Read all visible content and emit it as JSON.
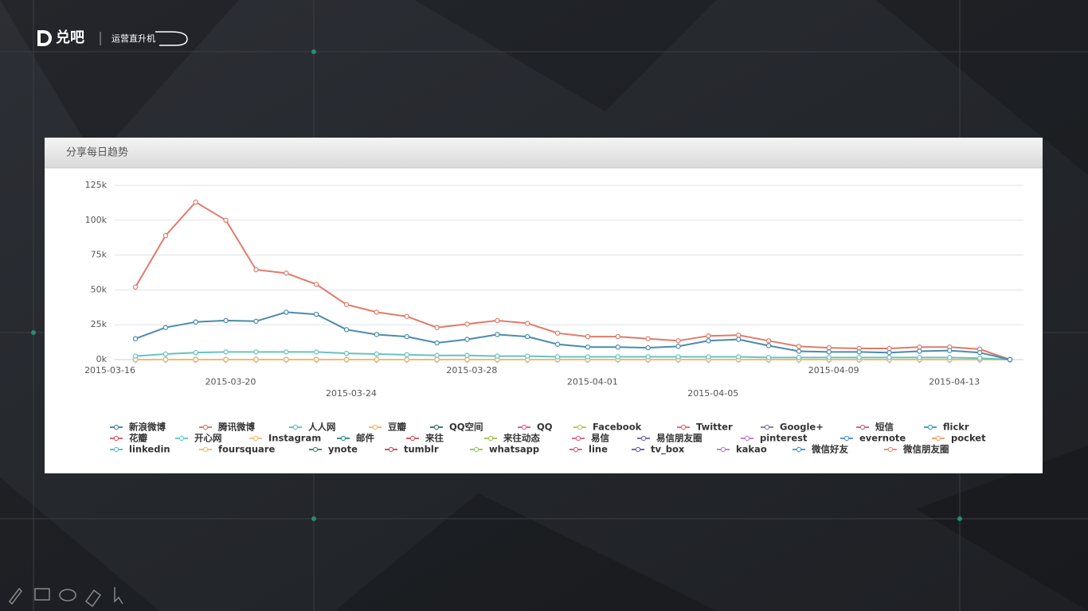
{
  "header": {
    "brand": "兑吧",
    "sub": "运营直升机"
  },
  "chart_data": {
    "type": "line",
    "title": "分享每日趋势",
    "x": [
      "2015-03-16",
      "2015-03-17",
      "2015-03-18",
      "2015-03-19",
      "2015-03-20",
      "2015-03-21",
      "2015-03-22",
      "2015-03-23",
      "2015-03-24",
      "2015-03-25",
      "2015-03-26",
      "2015-03-27",
      "2015-03-28",
      "2015-03-29",
      "2015-03-30",
      "2015-03-31",
      "2015-04-01",
      "2015-04-02",
      "2015-04-03",
      "2015-04-04",
      "2015-04-05",
      "2015-04-06",
      "2015-04-07",
      "2015-04-08",
      "2015-04-09",
      "2015-04-10",
      "2015-04-11",
      "2015-04-12",
      "2015-04-13",
      "2015-04-14"
    ],
    "xticks": [
      "2015-03-16",
      "2015-03-20",
      "2015-03-24",
      "2015-03-28",
      "2015-04-01",
      "2015-04-05",
      "2015-04-09",
      "2015-04-13"
    ],
    "ylim": [
      0,
      125000
    ],
    "yticks": [
      {
        "value": 0,
        "label": "0k"
      },
      {
        "value": 25000,
        "label": "25k"
      },
      {
        "value": 50000,
        "label": "50k"
      },
      {
        "value": 75000,
        "label": "75k"
      },
      {
        "value": 100000,
        "label": "100k"
      },
      {
        "value": 125000,
        "label": "125k"
      }
    ],
    "grid": true,
    "legend": "bottom",
    "series": [
      {
        "name": "新浪微博",
        "color": "#4a8bad",
        "values": [
          15000,
          23000,
          27000,
          28000,
          27500,
          34000,
          32500,
          21500,
          18000,
          16500,
          12000,
          14500,
          18000,
          16500,
          11000,
          9000,
          9000,
          8500,
          9500,
          13500,
          14500,
          10000,
          6000,
          5500,
          5500,
          5000,
          6000,
          6500,
          5000,
          0
        ]
      },
      {
        "name": "腾讯微博",
        "color": "#e07b6a",
        "values": [
          52000,
          89000,
          113000,
          100000,
          64500,
          62000,
          54000,
          39500,
          34000,
          31000,
          23000,
          25500,
          28000,
          26000,
          19000,
          16500,
          16500,
          15000,
          13500,
          17000,
          17500,
          13500,
          9500,
          8500,
          8000,
          8000,
          9000,
          9000,
          7500,
          0
        ]
      },
      {
        "name": "人人网",
        "color": "#66c2c2",
        "values": [
          2500,
          4000,
          5000,
          5500,
          5500,
          5500,
          5500,
          4500,
          4000,
          3500,
          3000,
          3000,
          2500,
          2500,
          2000,
          2000,
          2000,
          2000,
          2000,
          2000,
          2000,
          1500,
          1500,
          1500,
          1500,
          1500,
          1500,
          1500,
          1000,
          0
        ]
      },
      {
        "name": "豆瓣",
        "color": "#f7b967",
        "values": [
          0,
          0,
          0,
          0,
          0,
          0,
          0,
          0,
          0,
          0,
          0,
          0,
          0,
          0,
          0,
          0,
          0,
          0,
          0,
          0,
          0,
          0,
          0,
          0,
          0,
          0,
          0,
          0,
          0,
          0
        ]
      },
      {
        "name": "QQ空间",
        "color": "#3c7a79",
        "values": [
          0,
          0,
          0,
          0,
          0,
          0,
          0,
          0,
          0,
          0,
          0,
          0,
          0,
          0,
          0,
          0,
          0,
          0,
          0,
          0,
          0,
          0,
          0,
          0,
          0,
          0,
          0,
          0,
          0,
          0
        ]
      },
      {
        "name": "QQ",
        "color": "#d6678d",
        "values": [
          0,
          0,
          0,
          0,
          0,
          0,
          0,
          0,
          0,
          0,
          0,
          0,
          0,
          0,
          0,
          0,
          0,
          0,
          0,
          0,
          0,
          0,
          0,
          0,
          0,
          0,
          0,
          0,
          0,
          0
        ]
      },
      {
        "name": "Facebook",
        "color": "#b5c96b",
        "values": [
          0,
          0,
          0,
          0,
          0,
          0,
          0,
          0,
          0,
          0,
          0,
          0,
          0,
          0,
          0,
          0,
          0,
          0,
          0,
          0,
          0,
          0,
          0,
          0,
          0,
          0,
          0,
          0,
          0,
          0
        ]
      },
      {
        "name": "Twitter",
        "color": "#e86e6e",
        "values": [
          0,
          0,
          0,
          0,
          0,
          0,
          0,
          0,
          0,
          0,
          0,
          0,
          0,
          0,
          0,
          0,
          0,
          0,
          0,
          0,
          0,
          0,
          0,
          0,
          0,
          0,
          0,
          0,
          0,
          0
        ]
      },
      {
        "name": "Google+",
        "color": "#8085a8",
        "values": [
          0,
          0,
          0,
          0,
          0,
          0,
          0,
          0,
          0,
          0,
          0,
          0,
          0,
          0,
          0,
          0,
          0,
          0,
          0,
          0,
          0,
          0,
          0,
          0,
          0,
          0,
          0,
          0,
          0,
          0
        ]
      },
      {
        "name": "短信",
        "color": "#c96f8b",
        "values": [
          0,
          0,
          0,
          0,
          0,
          0,
          0,
          0,
          0,
          0,
          0,
          0,
          0,
          0,
          0,
          0,
          0,
          0,
          0,
          0,
          0,
          0,
          0,
          0,
          0,
          0,
          0,
          0,
          0,
          0
        ]
      },
      {
        "name": "flickr",
        "color": "#4aa0c9",
        "values": [
          0,
          0,
          0,
          0,
          0,
          0,
          0,
          0,
          0,
          0,
          0,
          0,
          0,
          0,
          0,
          0,
          0,
          0,
          0,
          0,
          0,
          0,
          0,
          0,
          0,
          0,
          0,
          0,
          0,
          0
        ]
      },
      {
        "name": "花瓣",
        "color": "#e0626a",
        "values": [
          0,
          0,
          0,
          0,
          0,
          0,
          0,
          0,
          0,
          0,
          0,
          0,
          0,
          0,
          0,
          0,
          0,
          0,
          0,
          0,
          0,
          0,
          0,
          0,
          0,
          0,
          0,
          0,
          0,
          0
        ]
      },
      {
        "name": "开心网",
        "color": "#70cccc",
        "values": [
          0,
          0,
          0,
          0,
          0,
          0,
          0,
          0,
          0,
          0,
          0,
          0,
          0,
          0,
          0,
          0,
          0,
          0,
          0,
          0,
          0,
          0,
          0,
          0,
          0,
          0,
          0,
          0,
          0,
          0
        ]
      },
      {
        "name": "Instagram",
        "color": "#f2c27c",
        "values": [
          0,
          0,
          0,
          0,
          0,
          0,
          0,
          0,
          0,
          0,
          0,
          0,
          0,
          0,
          0,
          0,
          0,
          0,
          0,
          0,
          0,
          0,
          0,
          0,
          0,
          0,
          0,
          0,
          0,
          0
        ]
      },
      {
        "name": "邮件",
        "color": "#3f8f8a",
        "values": [
          0,
          0,
          0,
          0,
          0,
          0,
          0,
          0,
          0,
          0,
          0,
          0,
          0,
          0,
          0,
          0,
          0,
          0,
          0,
          0,
          0,
          0,
          0,
          0,
          0,
          0,
          0,
          0,
          0,
          0
        ]
      },
      {
        "name": "来往",
        "color": "#d35f6a",
        "values": [
          0,
          0,
          0,
          0,
          0,
          0,
          0,
          0,
          0,
          0,
          0,
          0,
          0,
          0,
          0,
          0,
          0,
          0,
          0,
          0,
          0,
          0,
          0,
          0,
          0,
          0,
          0,
          0,
          0,
          0
        ]
      },
      {
        "name": "来往动态",
        "color": "#a6c25f",
        "values": [
          0,
          0,
          0,
          0,
          0,
          0,
          0,
          0,
          0,
          0,
          0,
          0,
          0,
          0,
          0,
          0,
          0,
          0,
          0,
          0,
          0,
          0,
          0,
          0,
          0,
          0,
          0,
          0,
          0,
          0
        ]
      },
      {
        "name": "易信",
        "color": "#d86e8a",
        "values": [
          0,
          0,
          0,
          0,
          0,
          0,
          0,
          0,
          0,
          0,
          0,
          0,
          0,
          0,
          0,
          0,
          0,
          0,
          0,
          0,
          0,
          0,
          0,
          0,
          0,
          0,
          0,
          0,
          0,
          0
        ]
      },
      {
        "name": "易信朋友圈",
        "color": "#7a6fae",
        "values": [
          0,
          0,
          0,
          0,
          0,
          0,
          0,
          0,
          0,
          0,
          0,
          0,
          0,
          0,
          0,
          0,
          0,
          0,
          0,
          0,
          0,
          0,
          0,
          0,
          0,
          0,
          0,
          0,
          0,
          0
        ]
      },
      {
        "name": "pinterest",
        "color": "#c383d6",
        "values": [
          0,
          0,
          0,
          0,
          0,
          0,
          0,
          0,
          0,
          0,
          0,
          0,
          0,
          0,
          0,
          0,
          0,
          0,
          0,
          0,
          0,
          0,
          0,
          0,
          0,
          0,
          0,
          0,
          0,
          0
        ]
      },
      {
        "name": "evernote",
        "color": "#5b9bc4",
        "values": [
          0,
          0,
          0,
          0,
          0,
          0,
          0,
          0,
          0,
          0,
          0,
          0,
          0,
          0,
          0,
          0,
          0,
          0,
          0,
          0,
          0,
          0,
          0,
          0,
          0,
          0,
          0,
          0,
          0,
          0
        ]
      },
      {
        "name": "pocket",
        "color": "#f0a574",
        "values": [
          0,
          0,
          0,
          0,
          0,
          0,
          0,
          0,
          0,
          0,
          0,
          0,
          0,
          0,
          0,
          0,
          0,
          0,
          0,
          0,
          0,
          0,
          0,
          0,
          0,
          0,
          0,
          0,
          0,
          0
        ]
      },
      {
        "name": "linkedin",
        "color": "#60c4c4",
        "values": [
          0,
          0,
          0,
          0,
          0,
          0,
          0,
          0,
          0,
          0,
          0,
          0,
          0,
          0,
          0,
          0,
          0,
          0,
          0,
          0,
          0,
          0,
          0,
          0,
          0,
          0,
          0,
          0,
          0,
          0
        ]
      },
      {
        "name": "foursquare",
        "color": "#f3c06b",
        "values": [
          0,
          0,
          0,
          0,
          0,
          0,
          0,
          0,
          0,
          0,
          0,
          0,
          0,
          0,
          0,
          0,
          0,
          0,
          0,
          0,
          0,
          0,
          0,
          0,
          0,
          0,
          0,
          0,
          0,
          0
        ]
      },
      {
        "name": "ynote",
        "color": "#4c8a80",
        "values": [
          0,
          0,
          0,
          0,
          0,
          0,
          0,
          0,
          0,
          0,
          0,
          0,
          0,
          0,
          0,
          0,
          0,
          0,
          0,
          0,
          0,
          0,
          0,
          0,
          0,
          0,
          0,
          0,
          0,
          0
        ]
      },
      {
        "name": "tumblr",
        "color": "#c9546a",
        "values": [
          0,
          0,
          0,
          0,
          0,
          0,
          0,
          0,
          0,
          0,
          0,
          0,
          0,
          0,
          0,
          0,
          0,
          0,
          0,
          0,
          0,
          0,
          0,
          0,
          0,
          0,
          0,
          0,
          0,
          0
        ]
      },
      {
        "name": "whatsapp",
        "color": "#a3c266",
        "values": [
          0,
          0,
          0,
          0,
          0,
          0,
          0,
          0,
          0,
          0,
          0,
          0,
          0,
          0,
          0,
          0,
          0,
          0,
          0,
          0,
          0,
          0,
          0,
          0,
          0,
          0,
          0,
          0,
          0,
          0
        ]
      },
      {
        "name": "line",
        "color": "#d86c8c",
        "values": [
          0,
          0,
          0,
          0,
          0,
          0,
          0,
          0,
          0,
          0,
          0,
          0,
          0,
          0,
          0,
          0,
          0,
          0,
          0,
          0,
          0,
          0,
          0,
          0,
          0,
          0,
          0,
          0,
          0,
          0
        ]
      },
      {
        "name": "tv_box",
        "color": "#6f6aa8",
        "values": [
          0,
          0,
          0,
          0,
          0,
          0,
          0,
          0,
          0,
          0,
          0,
          0,
          0,
          0,
          0,
          0,
          0,
          0,
          0,
          0,
          0,
          0,
          0,
          0,
          0,
          0,
          0,
          0,
          0,
          0
        ]
      },
      {
        "name": "kakao",
        "color": "#b98ac9",
        "values": [
          0,
          0,
          0,
          0,
          0,
          0,
          0,
          0,
          0,
          0,
          0,
          0,
          0,
          0,
          0,
          0,
          0,
          0,
          0,
          0,
          0,
          0,
          0,
          0,
          0,
          0,
          0,
          0,
          0,
          0
        ]
      },
      {
        "name": "微信好友",
        "color": "#4c9ccd",
        "values": [
          0,
          0,
          0,
          0,
          0,
          0,
          0,
          0,
          0,
          0,
          0,
          0,
          0,
          0,
          0,
          0,
          0,
          0,
          0,
          0,
          0,
          0,
          0,
          0,
          0,
          0,
          0,
          0,
          0,
          0
        ]
      },
      {
        "name": "微信朋友圈",
        "color": "#ef8f7c",
        "values": [
          0,
          0,
          0,
          0,
          0,
          0,
          0,
          0,
          0,
          0,
          0,
          0,
          0,
          0,
          0,
          0,
          0,
          0,
          0,
          0,
          0,
          0,
          0,
          0,
          0,
          0,
          0,
          0,
          0,
          0
        ]
      }
    ]
  }
}
